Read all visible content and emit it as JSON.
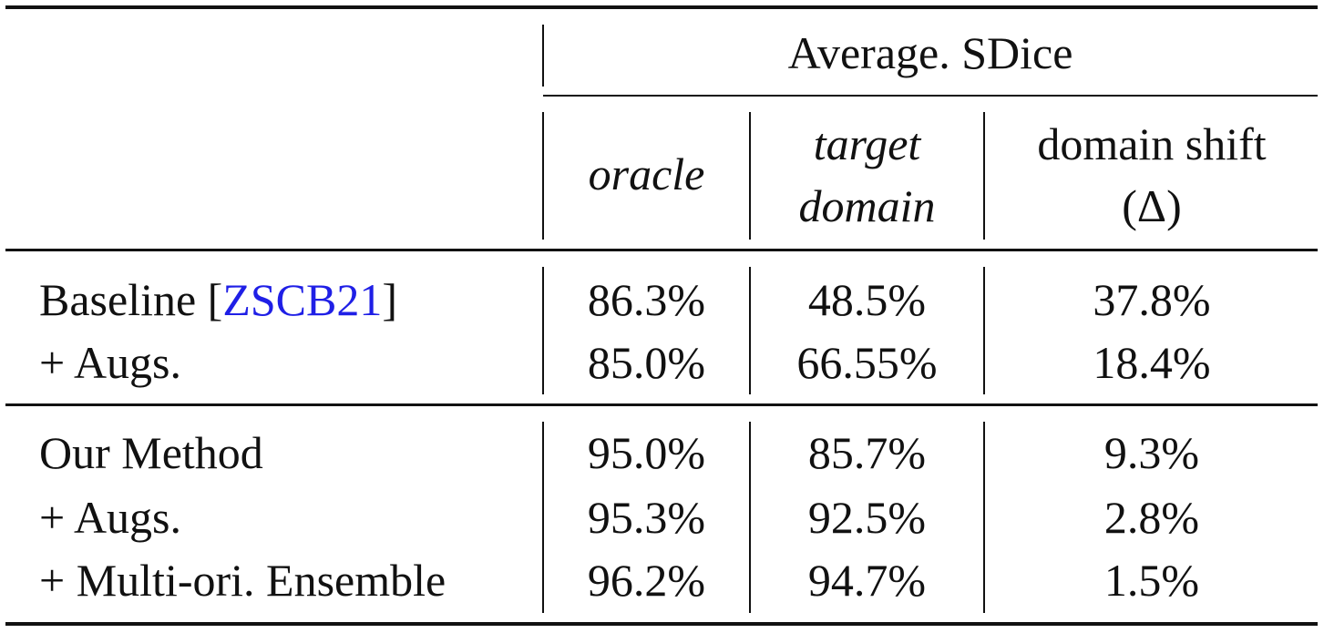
{
  "table": {
    "group_header": "Average. SDice",
    "columns": [
      {
        "line1": "oracle",
        "line2": ""
      },
      {
        "line1": "target",
        "line2": "domain"
      },
      {
        "line1": "domain shift",
        "line2": "(Δ)"
      }
    ],
    "groups": [
      {
        "rows": [
          {
            "method": "Baseline [",
            "cite": "ZSCB21",
            "method_suffix": "]",
            "values": [
              "86.3%",
              "48.5%",
              "37.8%"
            ]
          },
          {
            "method": "+ Augs.",
            "values": [
              "85.0%",
              "66.55%",
              "18.4%"
            ]
          }
        ]
      },
      {
        "rows": [
          {
            "method": "Our Method",
            "values": [
              "95.0%",
              "85.7%",
              "9.3%"
            ]
          },
          {
            "method": "+ Augs.",
            "values": [
              "95.3%",
              "92.5%",
              "2.8%"
            ]
          },
          {
            "method": "+ Multi-ori. Ensemble",
            "values": [
              "96.2%",
              "94.7%",
              "1.5%"
            ]
          }
        ]
      }
    ]
  }
}
